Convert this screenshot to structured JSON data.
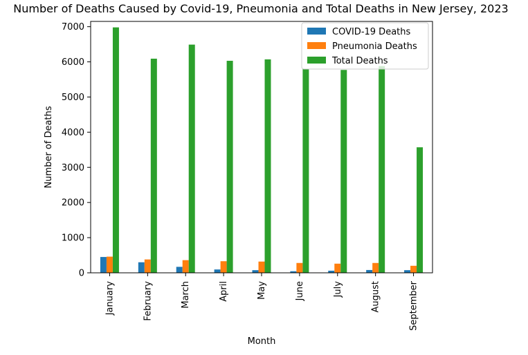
{
  "chart_data": {
    "type": "bar",
    "title": "Number of Deaths Caused by Covid-19, Pneumonia and Total Deaths in New Jersey, 2023",
    "xlabel": "Month",
    "ylabel": "Number of Deaths",
    "categories": [
      "January",
      "February",
      "March",
      "April",
      "May",
      "June",
      "July",
      "August",
      "September"
    ],
    "ylim": [
      0,
      7150
    ],
    "yticks": [
      0,
      1000,
      2000,
      3000,
      4000,
      5000,
      6000,
      7000
    ],
    "legend_position": "top-right",
    "grid": false,
    "series": [
      {
        "name": "COVID-19 Deaths",
        "color": "#1f77b4",
        "values": [
          450,
          300,
          170,
          95,
          75,
          45,
          60,
          80,
          75
        ]
      },
      {
        "name": "Pneumonia Deaths",
        "color": "#ff7f0e",
        "values": [
          460,
          380,
          360,
          330,
          320,
          280,
          260,
          280,
          200
        ]
      },
      {
        "name": "Total Deaths",
        "color": "#2ca02c",
        "values": [
          6980,
          6090,
          6490,
          6030,
          6070,
          5800,
          5770,
          5880,
          3570
        ]
      }
    ]
  }
}
